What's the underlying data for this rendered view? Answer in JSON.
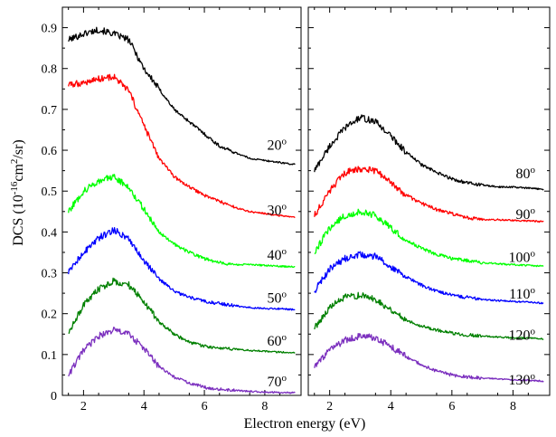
{
  "chart_data": {
    "type": "line",
    "xlabel": "Electron energy (eV)",
    "ylabel": {
      "base": "DCS (10",
      "exp1": "-16",
      "mid": "cm",
      "exp2": "2",
      "tail": "/sr)"
    },
    "xlim": [
      1.3,
      9.2
    ],
    "ylim": [
      0,
      0.95
    ],
    "xticks": [
      2,
      4,
      6,
      8
    ],
    "yticks": [
      0,
      0.1,
      0.2,
      0.3,
      0.4,
      0.5,
      0.6,
      0.7,
      0.8,
      0.9
    ],
    "ytick_labels": [
      "0",
      "0.1",
      "0.2",
      "0.3",
      "0.4",
      "0.5",
      "0.6",
      "0.7",
      "0.8",
      "0.9"
    ],
    "label_suffix": "o",
    "panels": [
      {
        "series": [
          {
            "angle": "20",
            "color": "#000000",
            "label_y": 0.615,
            "x": [
              1.5,
              2.0,
              2.5,
              3.0,
              3.5,
              4.0,
              4.5,
              5.0,
              5.5,
              6.0,
              6.5,
              7.0,
              7.5,
              8.0,
              8.5,
              9.0
            ],
            "y": [
              0.87,
              0.885,
              0.895,
              0.885,
              0.87,
              0.8,
              0.75,
              0.7,
              0.67,
              0.64,
              0.61,
              0.595,
              0.58,
              0.575,
              0.57,
              0.565
            ]
          },
          {
            "angle": "30",
            "color": "#ff0000",
            "label_y": 0.455,
            "x": [
              1.5,
              2.0,
              2.5,
              3.0,
              3.5,
              4.0,
              4.5,
              5.0,
              5.5,
              6.0,
              6.5,
              7.0,
              7.5,
              8.0,
              8.5,
              9.0
            ],
            "y": [
              0.76,
              0.765,
              0.775,
              0.78,
              0.745,
              0.66,
              0.58,
              0.535,
              0.51,
              0.49,
              0.475,
              0.46,
              0.45,
              0.445,
              0.44,
              0.435
            ]
          },
          {
            "angle": "40",
            "color": "#00ff00",
            "label_y": 0.345,
            "x": [
              1.5,
              2.0,
              2.5,
              3.0,
              3.5,
              4.0,
              4.5,
              5.0,
              5.5,
              6.0,
              6.5,
              7.0,
              7.5,
              8.0,
              8.5,
              9.0
            ],
            "y": [
              0.45,
              0.5,
              0.525,
              0.535,
              0.51,
              0.455,
              0.4,
              0.37,
              0.35,
              0.335,
              0.325,
              0.32,
              0.32,
              0.318,
              0.316,
              0.315
            ]
          },
          {
            "angle": "50",
            "color": "#0000ff",
            "label_y": 0.24,
            "x": [
              1.5,
              2.0,
              2.5,
              3.0,
              3.5,
              4.0,
              4.5,
              5.0,
              5.5,
              6.0,
              6.5,
              7.0,
              7.5,
              8.0,
              8.5,
              9.0
            ],
            "y": [
              0.3,
              0.35,
              0.385,
              0.405,
              0.385,
              0.33,
              0.285,
              0.255,
              0.24,
              0.23,
              0.225,
              0.22,
              0.215,
              0.213,
              0.212,
              0.21
            ]
          },
          {
            "angle": "60",
            "color": "#008000",
            "label_y": 0.135,
            "x": [
              1.5,
              2.0,
              2.5,
              3.0,
              3.5,
              4.0,
              4.5,
              5.0,
              5.5,
              6.0,
              6.5,
              7.0,
              7.5,
              8.0,
              8.5,
              9.0
            ],
            "y": [
              0.155,
              0.22,
              0.26,
              0.28,
              0.27,
              0.23,
              0.18,
              0.15,
              0.13,
              0.12,
              0.115,
              0.113,
              0.11,
              0.108,
              0.106,
              0.105
            ]
          },
          {
            "angle": "70",
            "color": "#7b2fbe",
            "label_y": 0.035,
            "x": [
              1.5,
              2.0,
              2.5,
              3.0,
              3.5,
              4.0,
              4.5,
              5.0,
              5.5,
              6.0,
              6.5,
              7.0,
              7.5,
              8.0,
              8.5,
              9.0
            ],
            "y": [
              0.05,
              0.11,
              0.145,
              0.16,
              0.15,
              0.115,
              0.07,
              0.045,
              0.03,
              0.02,
              0.015,
              0.012,
              0.01,
              0.008,
              0.007,
              0.006
            ]
          }
        ]
      },
      {
        "series": [
          {
            "angle": "80",
            "color": "#000000",
            "label_y": 0.545,
            "x": [
              1.5,
              2.0,
              2.5,
              3.0,
              3.5,
              4.0,
              4.5,
              5.0,
              5.5,
              6.0,
              6.5,
              7.0,
              7.5,
              8.0,
              8.5,
              9.0
            ],
            "y": [
              0.55,
              0.61,
              0.655,
              0.68,
              0.67,
              0.635,
              0.595,
              0.565,
              0.545,
              0.53,
              0.52,
              0.515,
              0.51,
              0.51,
              0.507,
              0.505
            ]
          },
          {
            "angle": "90",
            "color": "#ff0000",
            "label_y": 0.445,
            "x": [
              1.5,
              2.0,
              2.5,
              3.0,
              3.5,
              4.0,
              4.5,
              5.0,
              5.5,
              6.0,
              6.5,
              7.0,
              7.5,
              8.0,
              8.5,
              9.0
            ],
            "y": [
              0.44,
              0.5,
              0.545,
              0.555,
              0.55,
              0.52,
              0.49,
              0.47,
              0.455,
              0.445,
              0.435,
              0.43,
              0.43,
              0.428,
              0.427,
              0.425
            ]
          },
          {
            "angle": "100",
            "color": "#00ff00",
            "label_y": 0.34,
            "x": [
              1.5,
              2.0,
              2.5,
              3.0,
              3.5,
              4.0,
              4.5,
              5.0,
              5.5,
              6.0,
              6.5,
              7.0,
              7.5,
              8.0,
              8.5,
              9.0
            ],
            "y": [
              0.35,
              0.41,
              0.44,
              0.45,
              0.44,
              0.41,
              0.38,
              0.36,
              0.345,
              0.335,
              0.33,
              0.325,
              0.322,
              0.32,
              0.318,
              0.316
            ]
          },
          {
            "angle": "110",
            "color": "#0000ff",
            "label_y": 0.25,
            "x": [
              1.5,
              2.0,
              2.5,
              3.0,
              3.5,
              4.0,
              4.5,
              5.0,
              5.5,
              6.0,
              6.5,
              7.0,
              7.5,
              8.0,
              8.5,
              9.0
            ],
            "y": [
              0.255,
              0.31,
              0.335,
              0.345,
              0.34,
              0.315,
              0.29,
              0.27,
              0.255,
              0.245,
              0.24,
              0.235,
              0.232,
              0.23,
              0.228,
              0.226
            ]
          },
          {
            "angle": "120",
            "color": "#008000",
            "label_y": 0.15,
            "x": [
              1.5,
              2.0,
              2.5,
              3.0,
              3.5,
              4.0,
              4.5,
              5.0,
              5.5,
              6.0,
              6.5,
              7.0,
              7.5,
              8.0,
              8.5,
              9.0
            ],
            "y": [
              0.165,
              0.215,
              0.24,
              0.245,
              0.235,
              0.21,
              0.185,
              0.17,
              0.16,
              0.152,
              0.148,
              0.145,
              0.143,
              0.141,
              0.14,
              0.138
            ]
          },
          {
            "angle": "130",
            "color": "#7b2fbe",
            "label_y": 0.04,
            "x": [
              1.5,
              2.0,
              2.5,
              3.0,
              3.5,
              4.0,
              4.5,
              5.0,
              5.5,
              6.0,
              6.5,
              7.0,
              7.5,
              8.0,
              8.5,
              9.0
            ],
            "y": [
              0.07,
              0.11,
              0.135,
              0.145,
              0.14,
              0.12,
              0.095,
              0.075,
              0.06,
              0.05,
              0.045,
              0.042,
              0.04,
              0.038,
              0.037,
              0.035
            ]
          }
        ]
      }
    ]
  }
}
